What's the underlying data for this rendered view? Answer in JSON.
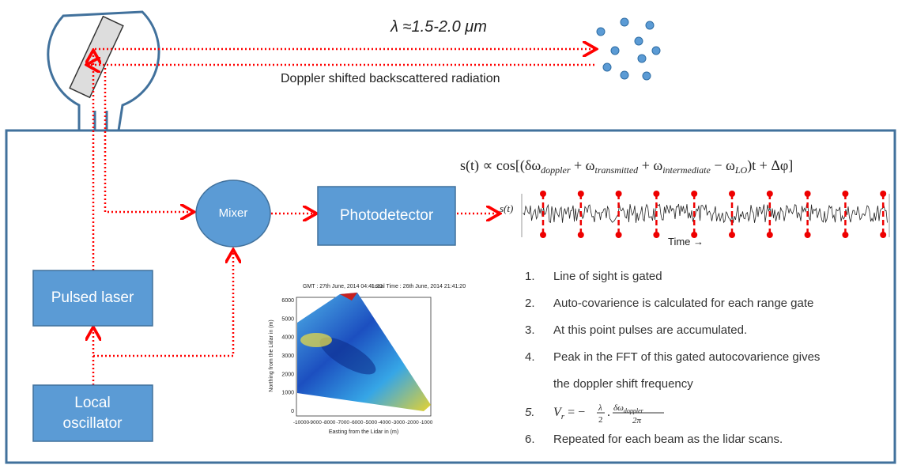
{
  "top": {
    "wavelength": "λ ≈1.5-2.0 μm",
    "backscatter": "Doppler shifted backscattered radiation"
  },
  "formula": [
    "s(t) ∝ cos[(δω",
    "doppler",
    " + ω",
    "transmitted",
    " + ω",
    "intermediate",
    " − ω",
    "LO",
    ")t + Δφ]"
  ],
  "nodes": {
    "mixer": "Mixer",
    "photodetector": "Photodetector",
    "laser": "Pulsed laser",
    "oscillator": [
      "Local",
      "oscillator"
    ]
  },
  "signal": {
    "label": "s(t)",
    "axis": "Time →"
  },
  "inset": {
    "left_title": "GMT : 27th June, 2014  04:41:20",
    "right_title": "Local Time : 26th June, 2014  21:41:20",
    "ylabel": "Northing from the Lidar in (m)",
    "xlabel": "Easting from the Lidar in (m)",
    "yticks": [
      0,
      1000,
      2000,
      3000,
      4000,
      5000,
      6000
    ],
    "xticks": [
      -10000,
      -9000,
      -8000,
      -7000,
      -6000,
      -5000,
      -4000,
      -3000,
      -2000,
      -1000
    ]
  },
  "steps": [
    {
      "n": "1.",
      "text": "Line of sight is gated"
    },
    {
      "n": "2.",
      "text": "Auto-covarience is calculated for each range gate"
    },
    {
      "n": "3.",
      "text": "At this point pulses are accumulated."
    },
    {
      "n": "4.",
      "text": "Peak in the FFT of this gated autocovarience gives",
      "text2": "the doppler shift frequency"
    },
    {
      "n": "5.",
      "formula": [
        "V",
        "r",
        " = −",
        "λ",
        "2",
        ".",
        "δω",
        "doppler",
        "2π"
      ]
    },
    {
      "n": "6.",
      "text": "Repeated for each beam as the lidar scans."
    }
  ]
}
